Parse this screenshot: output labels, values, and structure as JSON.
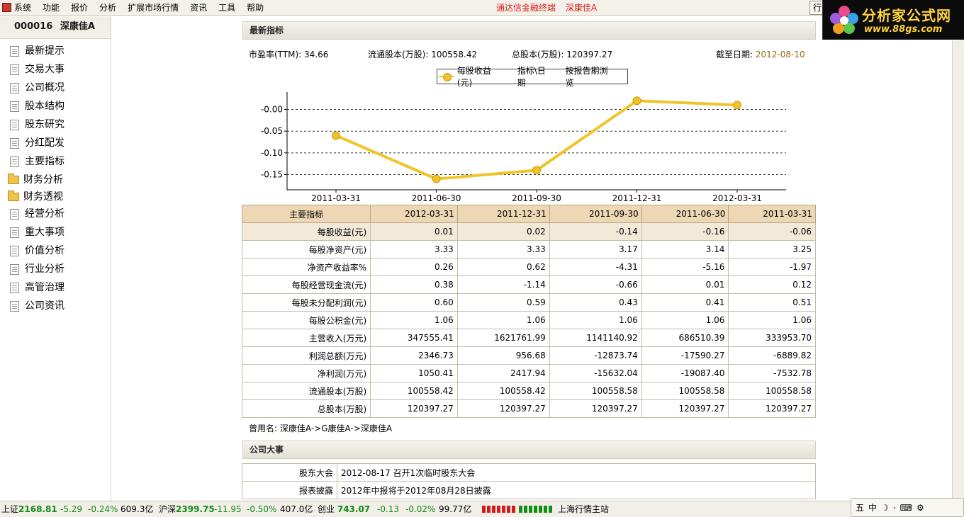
{
  "menubar": {
    "items": [
      "系统",
      "功能",
      "报价",
      "分析",
      "扩展市场行情",
      "资讯",
      "工具",
      "帮助"
    ],
    "title_app": "通达信金融终端",
    "title_stock": "深康佳A",
    "quote_button": "行"
  },
  "logo": {
    "text": "分析家公式网",
    "url": "www.88gs.com"
  },
  "sidebar": {
    "code": "000016",
    "name": "深康佳A",
    "items": [
      {
        "label": "最新提示",
        "icon": "document-icon"
      },
      {
        "label": "交易大事",
        "icon": "document-icon"
      },
      {
        "label": "公司概况",
        "icon": "document-icon"
      },
      {
        "label": "股本结构",
        "icon": "document-icon"
      },
      {
        "label": "股东研究",
        "icon": "document-icon"
      },
      {
        "label": "分红配发",
        "icon": "document-icon"
      },
      {
        "label": "主要指标",
        "icon": "document-icon"
      },
      {
        "label": "财务分析",
        "icon": "folder-icon"
      },
      {
        "label": "财务透视",
        "icon": "folder-icon"
      },
      {
        "label": "经营分析",
        "icon": "document-icon"
      },
      {
        "label": "重大事项",
        "icon": "document-icon"
      },
      {
        "label": "价值分析",
        "icon": "document-icon"
      },
      {
        "label": "行业分析",
        "icon": "document-icon"
      },
      {
        "label": "高管治理",
        "icon": "document-icon"
      },
      {
        "label": "公司资讯",
        "icon": "document-icon"
      }
    ]
  },
  "latest": {
    "header": "最新指标",
    "pe_label": "市盈率(TTM):",
    "pe_value": "34.66",
    "float_label": "流通股本(万股):",
    "float_value": "100558.42",
    "total_label": "总股本(万股):",
    "total_value": "120397.27",
    "date_label": "截至日期:",
    "date_value": "2012-08-10"
  },
  "legend": {
    "series_label": "每股收益(元)",
    "option1": "指标\\日期",
    "option2": "按报告期浏览"
  },
  "chart_data": {
    "type": "line",
    "x": [
      "2011-03-31",
      "2011-06-30",
      "2011-09-30",
      "2011-12-31",
      "2012-03-31"
    ],
    "series": [
      {
        "name": "每股收益(元)",
        "values": [
          -0.06,
          -0.16,
          -0.14,
          0.02,
          0.01
        ]
      }
    ],
    "yticks": [
      "-0.00",
      "-0.05",
      "-0.10",
      "-0.15"
    ],
    "ylim": [
      -0.185,
      0.04
    ],
    "grid": true,
    "color": "#f0c428"
  },
  "table": {
    "headers": [
      "主要指标",
      "2012-03-31",
      "2011-12-31",
      "2011-09-30",
      "2011-06-30",
      "2011-03-31"
    ],
    "rows": [
      [
        "每股收益(元)",
        "0.01",
        "0.02",
        "-0.14",
        "-0.16",
        "-0.06"
      ],
      [
        "每股净资产(元)",
        "3.33",
        "3.33",
        "3.17",
        "3.14",
        "3.25"
      ],
      [
        "净资产收益率%",
        "0.26",
        "0.62",
        "-4.31",
        "-5.16",
        "-1.97"
      ],
      [
        "每股经营现金流(元)",
        "0.38",
        "-1.14",
        "-0.66",
        "0.01",
        "0.12"
      ],
      [
        "每股未分配利润(元)",
        "0.60",
        "0.59",
        "0.43",
        "0.41",
        "0.51"
      ],
      [
        "每股公积金(元)",
        "1.06",
        "1.06",
        "1.06",
        "1.06",
        "1.06"
      ],
      [
        "主营收入(万元)",
        "347555.41",
        "1621761.99",
        "1141140.92",
        "686510.39",
        "333953.70"
      ],
      [
        "利润总额(万元)",
        "2346.73",
        "956.68",
        "-12873.74",
        "-17590.27",
        "-6889.82"
      ],
      [
        "净利润(万元)",
        "1050.41",
        "2417.94",
        "-15632.04",
        "-19087.40",
        "-7532.78"
      ],
      [
        "流通股本(万股)",
        "100558.42",
        "100558.42",
        "100558.58",
        "100558.58",
        "100558.58"
      ],
      [
        "总股本(万股)",
        "120397.27",
        "120397.27",
        "120397.27",
        "120397.27",
        "120397.27"
      ]
    ]
  },
  "alias": {
    "label": "曾用名:",
    "value": "深康佳A->G康佳A->深康佳A"
  },
  "events": {
    "header": "公司大事",
    "rows": [
      {
        "label": "股东大会",
        "value": "2012-08-17 召开1次临时股东大会"
      },
      {
        "label": "报表披露",
        "value": "2012年中报将于2012年08月28日披露"
      }
    ]
  },
  "statusbar": {
    "sh_label": "上证",
    "sh_index": "2168.81",
    "sh_change": "-5.29",
    "sh_pct": "-0.24%",
    "sh_amount": "609.3亿",
    "sz_label": "沪深",
    "sz_index": "2399.75",
    "sz_change": "-11.95",
    "sz_pct": "-0.50%",
    "sz_amount": "407.0亿",
    "cy_label": "创业",
    "cy_index": "743.07",
    "cy_change": "-0.13",
    "cy_pct": "-0.02%",
    "cy_amount": "99.77亿",
    "server": "上海行情主站"
  },
  "tray": {
    "item1": "五",
    "item2": "中"
  }
}
